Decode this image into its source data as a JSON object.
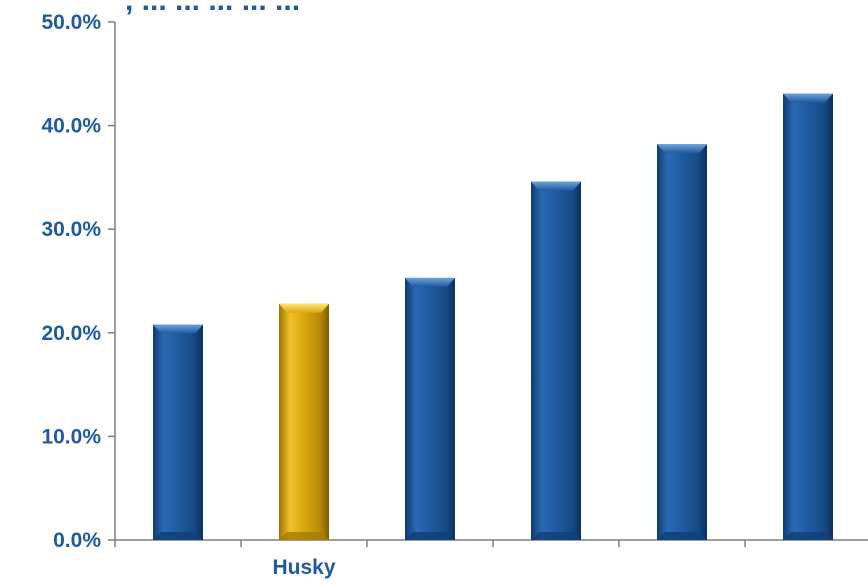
{
  "chart_data": {
    "type": "bar",
    "title": ", ... ... ... ... ...",
    "categories": [
      "",
      "Husky",
      "",
      "",
      "",
      ""
    ],
    "values": [
      20.8,
      22.8,
      25.3,
      34.6,
      38.2,
      43.1
    ],
    "highlight_index": 1,
    "ylim": [
      0,
      50
    ],
    "yticks": [
      0,
      10,
      20,
      30,
      40,
      50
    ],
    "ytick_labels": [
      "0.0%",
      "10.0%",
      "20.0%",
      "30.0%",
      "40.0%",
      "50.0%"
    ],
    "xlabel": "",
    "ylabel": "",
    "grid": false,
    "colors": {
      "bar": "#1f5a9e",
      "highlight": "#d9a70c",
      "text": "#1f5a9e",
      "axis": "#7f7f7f"
    }
  }
}
